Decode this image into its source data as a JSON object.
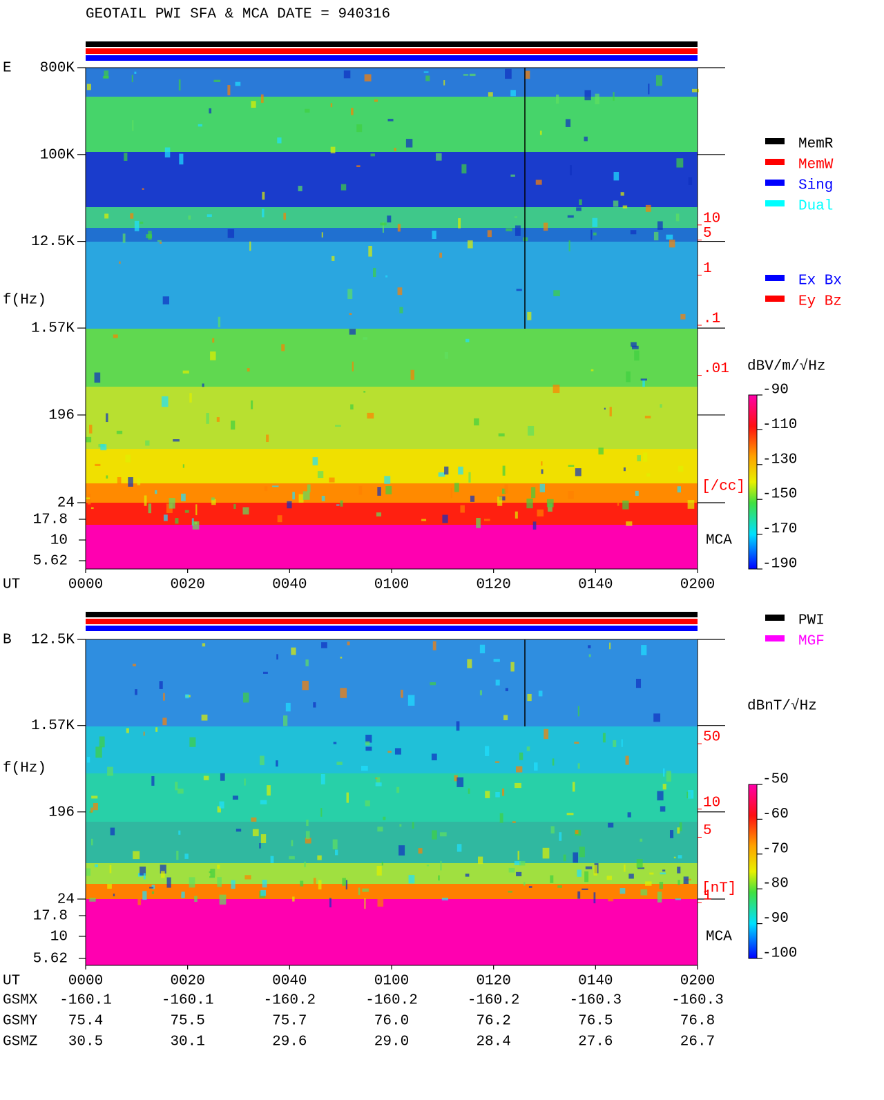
{
  "title": "GEOTAIL  PWI SFA & MCA   DATE = 940316",
  "chart_data": [
    {
      "type": "spectrogram",
      "label": "E",
      "ylabel": "f(Hz)",
      "xlabel": "UT",
      "yscale": "log",
      "ylim": [
        24,
        800000
      ],
      "yticks": [
        {
          "value": 800000,
          "label": "800K"
        },
        {
          "value": 100000,
          "label": "100K"
        },
        {
          "value": 12500,
          "label": "12.5K"
        },
        {
          "value": 1570,
          "label": "1.57K"
        },
        196,
        24
      ],
      "mca_label": "MCA",
      "mca_ticks": [
        17.8,
        10,
        5.62
      ],
      "xlim": [
        0,
        120
      ],
      "xticks": [
        {
          "value": 0,
          "label": "0000"
        },
        {
          "value": 20,
          "label": "0020"
        },
        {
          "value": 40,
          "label": "0040"
        },
        {
          "value": 60,
          "label": "0100"
        },
        {
          "value": 80,
          "label": "0120"
        },
        {
          "value": 100,
          "label": "0140"
        },
        {
          "value": 120,
          "label": "0200"
        }
      ],
      "y2lim": [
        1e-06,
        10000
      ],
      "y2color": "#ff0000",
      "y2ticks": [
        10,
        5,
        1,
        {
          "value": 0.1,
          "label": ".1"
        },
        {
          "value": 0.01,
          "label": ".01"
        }
      ],
      "y2label": "[/cc]",
      "colorbar": {
        "label": "dBV/m/√Hz",
        "clim": [
          -190,
          -90
        ],
        "cticks": [
          -90,
          -110,
          -130,
          -150,
          -170,
          -190
        ]
      },
      "legend": [
        {
          "name": "MemR",
          "color": "#000000"
        },
        {
          "name": "MemW",
          "color": "#ff0000"
        },
        {
          "name": "Sing",
          "color": "#0000ff"
        },
        {
          "name": "Dual",
          "color": "#00ffff"
        },
        {
          "name": "Ex Bx",
          "color": "#0000ff"
        },
        {
          "name": "Ey Bz",
          "color": "#ff0000"
        }
      ]
    },
    {
      "type": "spectrogram",
      "label": "B",
      "ylabel": "f(Hz)",
      "xlabel": "UT",
      "yscale": "log",
      "ylim": [
        24,
        12500
      ],
      "yticks": [
        {
          "value": 12500,
          "label": "12.5K"
        },
        {
          "value": 1570,
          "label": "1.57K"
        },
        196,
        24
      ],
      "mca_label": "MCA",
      "mca_ticks": [
        17.8,
        10,
        5.62
      ],
      "xlim": [
        0,
        120
      ],
      "xticks": [
        {
          "value": 0,
          "label": "0000"
        },
        {
          "value": 20,
          "label": "0020"
        },
        {
          "value": 40,
          "label": "0040"
        },
        {
          "value": 60,
          "label": "0100"
        },
        {
          "value": 80,
          "label": "0120"
        },
        {
          "value": 100,
          "label": "0140"
        },
        {
          "value": 120,
          "label": "0200"
        }
      ],
      "y2lim": [
        0.18,
        550
      ],
      "y2color": "#ff0000",
      "y2ticks": [
        50,
        10,
        5,
        1
      ],
      "y2label": "[nT]",
      "colorbar": {
        "label": "dBnT/√Hz",
        "clim": [
          -100,
          -50
        ],
        "cticks": [
          -50,
          -60,
          -70,
          -80,
          -90,
          -100
        ]
      },
      "legend": [
        {
          "name": "PWI",
          "color": "#000000"
        },
        {
          "name": "MGF",
          "color": "#ff00ff"
        }
      ]
    }
  ],
  "ephemeris": {
    "labels": [
      "GSMX",
      "GSMY",
      "GSMZ"
    ],
    "rows": [
      [
        "-160.1",
        "-160.1",
        "-160.2",
        "-160.2",
        "-160.2",
        "-160.3",
        "-160.3"
      ],
      [
        "75.4",
        "75.5",
        "75.7",
        "76.0",
        "76.2",
        "76.5",
        "76.8"
      ],
      [
        "30.5",
        "30.1",
        "29.6",
        "29.0",
        "28.4",
        "27.6",
        "26.7"
      ]
    ]
  }
}
